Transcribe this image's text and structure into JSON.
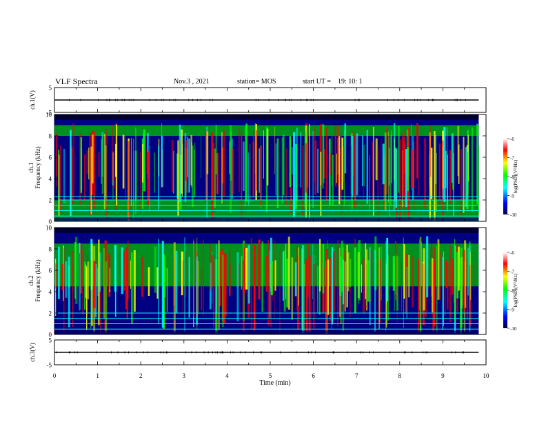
{
  "header": {
    "title": "VLF Spectra",
    "date": "Nov.3 , 2021",
    "station": "station= MOS",
    "start_label": "start UT =",
    "start_value": "19: 10: 1"
  },
  "colors": {
    "ink": "#000000",
    "colormap": [
      "#000040",
      "#0000ff",
      "#00ffff",
      "#00ff00",
      "#ffff00",
      "#ff0000",
      "#ffffff"
    ]
  },
  "chart_data": [
    {
      "type": "line",
      "panel": "ch1-voltage",
      "ylabel": "ch.1(V)",
      "ylim": [
        -5,
        5
      ],
      "yticks": [
        "5",
        "-5"
      ],
      "series": [
        {
          "x": [
            0,
            9.83
          ],
          "y": [
            0,
            0
          ]
        }
      ]
    },
    {
      "type": "heatmap",
      "panel": "ch1-spectrogram",
      "ylabel": "ch.1 Frequency (kHz)",
      "xlim": [
        0,
        10
      ],
      "ylim": [
        0,
        10
      ],
      "yticks": [
        "0",
        "2",
        "4",
        "6",
        "8",
        "10"
      ],
      "x_data_end": 9.83,
      "colorbar": {
        "label": "log(PSD)(V²/Hz)",
        "range": [
          -10,
          -6
        ],
        "ticks": [
          "-6",
          "-7",
          "-8",
          "-9",
          "-10"
        ]
      },
      "dominant_bands_khz": [
        [
          0,
          2
        ],
        [
          8,
          9
        ]
      ],
      "line_bands_khz": [
        0.5,
        1.0,
        1.5,
        2.0,
        2.3
      ]
    },
    {
      "type": "heatmap",
      "panel": "ch2-spectrogram",
      "ylabel": "ch.2 Frequency (kHz)",
      "xlim": [
        0,
        10
      ],
      "ylim": [
        0,
        10
      ],
      "yticks": [
        "0",
        "2",
        "4",
        "6",
        "8",
        "10"
      ],
      "x_data_end": 9.83,
      "colorbar": {
        "label": "log(PSD)(V²/Hz)",
        "range": [
          -10,
          -6
        ],
        "ticks": [
          "-6",
          "-7",
          "-8",
          "-9",
          "-10"
        ]
      },
      "dominant_bands_khz": [
        [
          4.5,
          8.5
        ]
      ],
      "line_bands_khz": [
        0.5,
        1.0,
        1.5,
        2.0
      ]
    },
    {
      "type": "line",
      "panel": "ch3-voltage",
      "ylabel": "ch.3(V)",
      "xlabel": "Time (min)",
      "xlim": [
        0,
        10
      ],
      "xticks": [
        "0",
        "1",
        "2",
        "3",
        "4",
        "5",
        "6",
        "7",
        "8",
        "9",
        "10"
      ],
      "ylim": [
        -5,
        5
      ],
      "yticks": [
        "5",
        "-5"
      ],
      "series": [
        {
          "x": [
            0,
            9.83
          ],
          "y": [
            0,
            0
          ]
        }
      ]
    }
  ]
}
